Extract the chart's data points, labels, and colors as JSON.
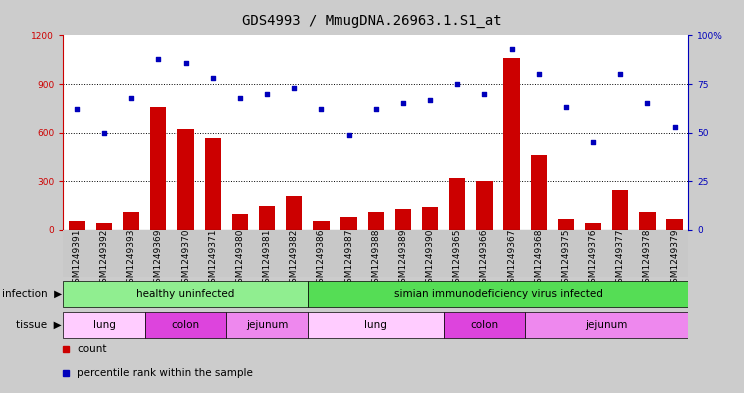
{
  "title": "GDS4993 / MmugDNA.26963.1.S1_at",
  "samples": [
    "GSM1249391",
    "GSM1249392",
    "GSM1249393",
    "GSM1249369",
    "GSM1249370",
    "GSM1249371",
    "GSM1249380",
    "GSM1249381",
    "GSM1249382",
    "GSM1249386",
    "GSM1249387",
    "GSM1249388",
    "GSM1249389",
    "GSM1249390",
    "GSM1249365",
    "GSM1249366",
    "GSM1249367",
    "GSM1249368",
    "GSM1249375",
    "GSM1249376",
    "GSM1249377",
    "GSM1249378",
    "GSM1249379"
  ],
  "counts": [
    55,
    40,
    110,
    760,
    620,
    570,
    100,
    150,
    210,
    55,
    80,
    110,
    130,
    140,
    320,
    300,
    1060,
    460,
    65,
    40,
    245,
    110,
    65
  ],
  "percentiles": [
    62,
    50,
    68,
    88,
    86,
    78,
    68,
    70,
    73,
    62,
    49,
    62,
    65,
    67,
    75,
    70,
    93,
    80,
    63,
    45,
    80,
    65,
    53
  ],
  "infection_groups": [
    {
      "label": "healthy uninfected",
      "start": 0,
      "end": 9,
      "color": "#90ee90"
    },
    {
      "label": "simian immunodeficiency virus infected",
      "start": 9,
      "end": 23,
      "color": "#55dd55"
    }
  ],
  "tissue_groups": [
    {
      "label": "lung",
      "start": 0,
      "end": 3,
      "color": "#ffccff"
    },
    {
      "label": "colon",
      "start": 3,
      "end": 6,
      "color": "#dd44dd"
    },
    {
      "label": "jejunum",
      "start": 6,
      "end": 9,
      "color": "#ee88ee"
    },
    {
      "label": "lung",
      "start": 9,
      "end": 14,
      "color": "#ffccff"
    },
    {
      "label": "colon",
      "start": 14,
      "end": 17,
      "color": "#dd44dd"
    },
    {
      "label": "jejunum",
      "start": 17,
      "end": 23,
      "color": "#ee88ee"
    }
  ],
  "bar_color": "#cc0000",
  "dot_color": "#0000bb",
  "bg_color": "#cccccc",
  "xtick_bg": "#c8c8c8",
  "plot_bg": "#ffffff",
  "left_ylim": [
    0,
    1200
  ],
  "left_yticks": [
    0,
    300,
    600,
    900,
    1200
  ],
  "right_ylim": [
    0,
    100
  ],
  "right_yticks": [
    0,
    25,
    50,
    75,
    100
  ],
  "title_fontsize": 10,
  "axis_fontsize": 6.5,
  "row_fontsize": 7.5
}
